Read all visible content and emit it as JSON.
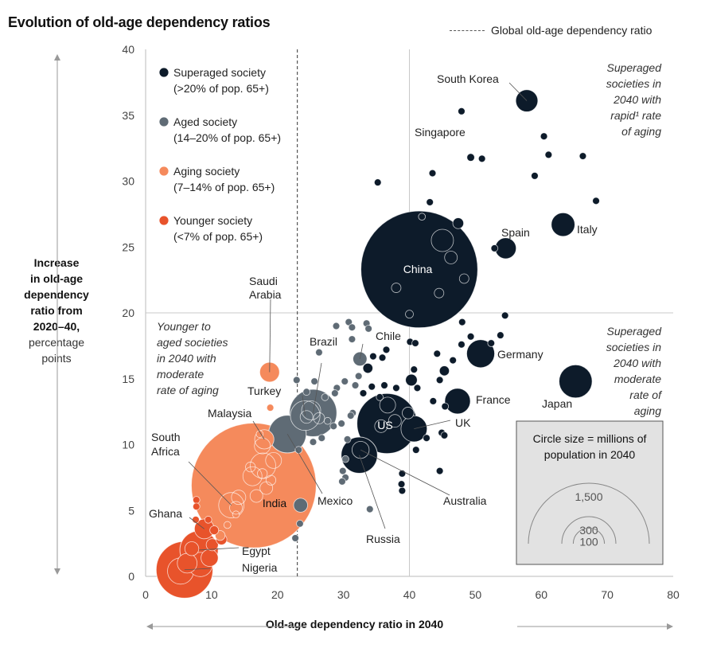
{
  "title": "Evolution of old-age dependency ratios",
  "global_line_label": "Global old-age dependency ratio",
  "y_axis": {
    "lines": [
      "Increase",
      "in old-age",
      "dependency",
      "ratio from",
      "2020–40,"
    ],
    "unit_lines": [
      "percentage",
      "points"
    ]
  },
  "x_axis_label": "Old-age dependency ratio in 2040",
  "colors": {
    "superaged": "#0d1b2a",
    "aged": "#5f6b75",
    "aging": "#f58a5c",
    "younger": "#e8532b",
    "grid": "#c8c8c8",
    "box_bg": "#e2e2e2"
  },
  "legend": [
    {
      "key": "superaged",
      "label": "Superaged society",
      "sub": "(>20% of pop. 65+)"
    },
    {
      "key": "aged",
      "label": "Aged society",
      "sub": "(14–20% of pop. 65+)"
    },
    {
      "key": "aging",
      "label": "Aging society",
      "sub": "(7–14% of pop. 65+)"
    },
    {
      "key": "younger",
      "label": "Younger society",
      "sub": "(<7% of pop. 65+)"
    }
  ],
  "quadrant_notes": [
    {
      "id": "top-right",
      "lines": [
        "Superaged",
        "societies in",
        "2040 with",
        "rapid¹ rate",
        "of aging"
      ]
    },
    {
      "id": "bottom-right",
      "lines": [
        "Superaged",
        "societies in",
        "2040 with",
        "moderate",
        "rate of",
        "aging"
      ]
    },
    {
      "id": "left",
      "lines": [
        "Younger to",
        "aged societies",
        "in 2040 with",
        "moderate",
        "rate of aging"
      ]
    }
  ],
  "size_key": {
    "title_lines": [
      "Circle size = millions of",
      "population in 2040"
    ],
    "values": [
      "1,500",
      "300",
      "100"
    ]
  },
  "chart_data": {
    "type": "scatter",
    "title": "Evolution of old-age dependency ratios",
    "xlabel": "Old-age dependency ratio in 2040",
    "ylabel": "Increase in old-age dependency ratio from 2020–40, percentage points",
    "xlim": [
      0,
      80
    ],
    "ylim": [
      0,
      40
    ],
    "xticks": [
      0,
      10,
      20,
      30,
      40,
      50,
      60,
      70,
      80
    ],
    "yticks": [
      0,
      5,
      10,
      15,
      20,
      25,
      30,
      35,
      40
    ],
    "grid": false,
    "global_ratio_x": 23,
    "divider_x": 40,
    "divider_y": 20,
    "named_points": [
      {
        "label": "China",
        "x": 41.5,
        "y": 23.3,
        "pop": 1400,
        "cat": "superaged"
      },
      {
        "label": "South Korea",
        "x": 57.8,
        "y": 36.1,
        "pop": 50,
        "cat": "superaged"
      },
      {
        "label": "Singapore",
        "x": 49.3,
        "y": 31.8,
        "pop": 6,
        "cat": "superaged"
      },
      {
        "label": "Spain",
        "x": 54.6,
        "y": 24.9,
        "pop": 45,
        "cat": "superaged"
      },
      {
        "label": "Italy",
        "x": 63.3,
        "y": 26.7,
        "pop": 57,
        "cat": "superaged"
      },
      {
        "label": "Germany",
        "x": 50.8,
        "y": 16.9,
        "pop": 80,
        "cat": "superaged"
      },
      {
        "label": "Japan",
        "x": 65.2,
        "y": 14.8,
        "pop": 113,
        "cat": "superaged"
      },
      {
        "label": "France",
        "x": 47.3,
        "y": 13.3,
        "pop": 67,
        "cat": "superaged"
      },
      {
        "label": "UK",
        "x": 40.7,
        "y": 11.2,
        "pop": 70,
        "cat": "superaged"
      },
      {
        "label": "US",
        "x": 36.6,
        "y": 11.6,
        "pop": 370,
        "cat": "superaged"
      },
      {
        "label": "Australia",
        "x": 32.6,
        "y": 9.6,
        "pop": 30,
        "cat": "superaged"
      },
      {
        "label": "Russia",
        "x": 32.4,
        "y": 9.2,
        "pop": 135,
        "cat": "superaged"
      },
      {
        "label": "Chile",
        "x": 32.5,
        "y": 16.5,
        "pop": 20,
        "cat": "aged"
      },
      {
        "label": "Brazil",
        "x": 25.4,
        "y": 12.4,
        "pop": 230,
        "cat": "aged"
      },
      {
        "label": "Mexico",
        "x": 21.5,
        "y": 10.8,
        "pop": 145,
        "cat": "aged"
      },
      {
        "label": "Turkey",
        "x": 24.2,
        "y": 12.2,
        "pop": 90,
        "cat": "aged"
      },
      {
        "label": "Saudi Arabia",
        "x": 18.8,
        "y": 15.5,
        "pop": 40,
        "cat": "aging"
      },
      {
        "label": "Malaysia",
        "x": 18.0,
        "y": 10.4,
        "pop": 38,
        "cat": "aging"
      },
      {
        "label": "India",
        "x": 16.4,
        "y": 6.9,
        "pop": 1600,
        "cat": "aging"
      },
      {
        "label": "South Africa",
        "x": 13.0,
        "y": 5.4,
        "pop": 66,
        "cat": "aging"
      },
      {
        "label": "Ghana",
        "x": 8.9,
        "y": 3.6,
        "pop": 40,
        "cat": "younger"
      },
      {
        "label": "Egypt",
        "x": 8.1,
        "y": 2.0,
        "pop": 150,
        "cat": "younger"
      },
      {
        "label": "Nigeria",
        "x": 5.9,
        "y": 0.5,
        "pop": 330,
        "cat": "younger"
      }
    ],
    "other_points": [
      {
        "x": 47.9,
        "y": 35.3,
        "pop": 5,
        "cat": "superaged"
      },
      {
        "x": 60.4,
        "y": 33.4,
        "pop": 5,
        "cat": "superaged"
      },
      {
        "x": 61.1,
        "y": 32.0,
        "pop": 5,
        "cat": "superaged"
      },
      {
        "x": 66.3,
        "y": 31.9,
        "pop": 5,
        "cat": "superaged"
      },
      {
        "x": 51.0,
        "y": 31.7,
        "pop": 5,
        "cat": "superaged"
      },
      {
        "x": 43.5,
        "y": 30.6,
        "pop": 5,
        "cat": "superaged"
      },
      {
        "x": 35.2,
        "y": 29.9,
        "pop": 5,
        "cat": "superaged"
      },
      {
        "x": 59.0,
        "y": 30.4,
        "pop": 5,
        "cat": "superaged"
      },
      {
        "x": 68.3,
        "y": 28.5,
        "pop": 5,
        "cat": "superaged"
      },
      {
        "x": 43.1,
        "y": 28.4,
        "pop": 5,
        "cat": "superaged"
      },
      {
        "x": 41.9,
        "y": 27.3,
        "pop": 5,
        "cat": "superaged"
      },
      {
        "x": 47.4,
        "y": 26.8,
        "pop": 12,
        "cat": "superaged"
      },
      {
        "x": 52.9,
        "y": 24.9,
        "pop": 5,
        "cat": "superaged"
      },
      {
        "x": 48.0,
        "y": 19.3,
        "pop": 5,
        "cat": "superaged"
      },
      {
        "x": 54.5,
        "y": 19.8,
        "pop": 5,
        "cat": "superaged"
      },
      {
        "x": 53.8,
        "y": 18.3,
        "pop": 5,
        "cat": "superaged"
      },
      {
        "x": 49.3,
        "y": 18.2,
        "pop": 5,
        "cat": "superaged"
      },
      {
        "x": 47.9,
        "y": 17.6,
        "pop": 5,
        "cat": "superaged"
      },
      {
        "x": 52.4,
        "y": 17.7,
        "pop": 5,
        "cat": "superaged"
      },
      {
        "x": 40.1,
        "y": 17.8,
        "pop": 5,
        "cat": "superaged"
      },
      {
        "x": 40.9,
        "y": 17.7,
        "pop": 5,
        "cat": "superaged"
      },
      {
        "x": 36.5,
        "y": 17.2,
        "pop": 5,
        "cat": "superaged"
      },
      {
        "x": 44.2,
        "y": 16.9,
        "pop": 5,
        "cat": "superaged"
      },
      {
        "x": 34.5,
        "y": 16.7,
        "pop": 5,
        "cat": "superaged"
      },
      {
        "x": 35.9,
        "y": 16.6,
        "pop": 5,
        "cat": "superaged"
      },
      {
        "x": 46.6,
        "y": 16.4,
        "pop": 5,
        "cat": "superaged"
      },
      {
        "x": 33.7,
        "y": 15.8,
        "pop": 10,
        "cat": "superaged"
      },
      {
        "x": 40.7,
        "y": 15.7,
        "pop": 5,
        "cat": "superaged"
      },
      {
        "x": 45.3,
        "y": 15.6,
        "pop": 10,
        "cat": "superaged"
      },
      {
        "x": 44.6,
        "y": 14.9,
        "pop": 5,
        "cat": "superaged"
      },
      {
        "x": 40.3,
        "y": 14.9,
        "pop": 14,
        "cat": "superaged"
      },
      {
        "x": 36.2,
        "y": 14.5,
        "pop": 5,
        "cat": "superaged"
      },
      {
        "x": 38.0,
        "y": 14.3,
        "pop": 5,
        "cat": "superaged"
      },
      {
        "x": 34.3,
        "y": 14.4,
        "pop": 5,
        "cat": "superaged"
      },
      {
        "x": 41.2,
        "y": 14.3,
        "pop": 5,
        "cat": "superaged"
      },
      {
        "x": 33.0,
        "y": 13.9,
        "pop": 5,
        "cat": "superaged"
      },
      {
        "x": 35.5,
        "y": 13.6,
        "pop": 5,
        "cat": "superaged"
      },
      {
        "x": 43.6,
        "y": 13.3,
        "pop": 5,
        "cat": "superaged"
      },
      {
        "x": 39.8,
        "y": 12.4,
        "pop": 14,
        "cat": "superaged"
      },
      {
        "x": 45.4,
        "y": 12.9,
        "pop": 5,
        "cat": "superaged"
      },
      {
        "x": 44.9,
        "y": 10.9,
        "pop": 5,
        "cat": "superaged"
      },
      {
        "x": 45.3,
        "y": 10.7,
        "pop": 5,
        "cat": "superaged"
      },
      {
        "x": 42.6,
        "y": 10.5,
        "pop": 5,
        "cat": "superaged"
      },
      {
        "x": 41.0,
        "y": 9.6,
        "pop": 5,
        "cat": "superaged"
      },
      {
        "x": 38.9,
        "y": 7.8,
        "pop": 5,
        "cat": "superaged"
      },
      {
        "x": 44.6,
        "y": 8.0,
        "pop": 5,
        "cat": "superaged"
      },
      {
        "x": 38.9,
        "y": 6.5,
        "pop": 5,
        "cat": "superaged"
      },
      {
        "x": 38.8,
        "y": 7.0,
        "pop": 5,
        "cat": "superaged"
      },
      {
        "x": 28.9,
        "y": 19.0,
        "pop": 5,
        "cat": "aged"
      },
      {
        "x": 30.8,
        "y": 19.3,
        "pop": 5,
        "cat": "aged"
      },
      {
        "x": 31.3,
        "y": 18.9,
        "pop": 5,
        "cat": "aged"
      },
      {
        "x": 33.5,
        "y": 19.2,
        "pop": 5,
        "cat": "aged"
      },
      {
        "x": 33.8,
        "y": 18.8,
        "pop": 5,
        "cat": "aged"
      },
      {
        "x": 31.3,
        "y": 18.0,
        "pop": 5,
        "cat": "aged"
      },
      {
        "x": 26.3,
        "y": 17.0,
        "pop": 5,
        "cat": "aged"
      },
      {
        "x": 32.3,
        "y": 15.2,
        "pop": 5,
        "cat": "aged"
      },
      {
        "x": 31.8,
        "y": 14.5,
        "pop": 5,
        "cat": "aged"
      },
      {
        "x": 30.2,
        "y": 14.8,
        "pop": 5,
        "cat": "aged"
      },
      {
        "x": 29.0,
        "y": 14.3,
        "pop": 5,
        "cat": "aged"
      },
      {
        "x": 25.6,
        "y": 14.8,
        "pop": 5,
        "cat": "aged"
      },
      {
        "x": 22.9,
        "y": 14.9,
        "pop": 5,
        "cat": "aged"
      },
      {
        "x": 24.4,
        "y": 14.0,
        "pop": 5,
        "cat": "aged"
      },
      {
        "x": 28.7,
        "y": 13.9,
        "pop": 5,
        "cat": "aged"
      },
      {
        "x": 27.2,
        "y": 13.6,
        "pop": 5,
        "cat": "aged"
      },
      {
        "x": 31.4,
        "y": 12.4,
        "pop": 5,
        "cat": "aged"
      },
      {
        "x": 31.1,
        "y": 12.2,
        "pop": 5,
        "cat": "aged"
      },
      {
        "x": 29.7,
        "y": 11.6,
        "pop": 5,
        "cat": "aged"
      },
      {
        "x": 28.5,
        "y": 11.4,
        "pop": 5,
        "cat": "aged"
      },
      {
        "x": 27.6,
        "y": 11.8,
        "pop": 5,
        "cat": "aged"
      },
      {
        "x": 30.6,
        "y": 10.4,
        "pop": 5,
        "cat": "aged"
      },
      {
        "x": 26.7,
        "y": 10.5,
        "pop": 5,
        "cat": "aged"
      },
      {
        "x": 25.4,
        "y": 10.2,
        "pop": 5,
        "cat": "aged"
      },
      {
        "x": 23.2,
        "y": 9.6,
        "pop": 5,
        "cat": "aged"
      },
      {
        "x": 30.3,
        "y": 8.9,
        "pop": 5,
        "cat": "aged"
      },
      {
        "x": 29.9,
        "y": 8.0,
        "pop": 5,
        "cat": "aged"
      },
      {
        "x": 30.3,
        "y": 7.5,
        "pop": 5,
        "cat": "aged"
      },
      {
        "x": 29.8,
        "y": 7.2,
        "pop": 5,
        "cat": "aged"
      },
      {
        "x": 34.0,
        "y": 5.1,
        "pop": 5,
        "cat": "aged"
      },
      {
        "x": 23.4,
        "y": 4.0,
        "pop": 5,
        "cat": "aged"
      },
      {
        "x": 22.7,
        "y": 2.9,
        "pop": 5,
        "cat": "aged"
      },
      {
        "x": 23.5,
        "y": 5.4,
        "pop": 20,
        "cat": "aged"
      },
      {
        "x": 18.9,
        "y": 12.8,
        "pop": 5,
        "cat": "aging"
      },
      {
        "x": 17.3,
        "y": 10.8,
        "pop": 5,
        "cat": "aging"
      },
      {
        "x": 15.9,
        "y": 8.3,
        "pop": 10,
        "cat": "aging"
      },
      {
        "x": 17.7,
        "y": 7.8,
        "pop": 10,
        "cat": "aging"
      },
      {
        "x": 19.0,
        "y": 7.3,
        "pop": 10,
        "cat": "aging"
      },
      {
        "x": 13.7,
        "y": 4.7,
        "pop": 5,
        "cat": "aging"
      },
      {
        "x": 12.4,
        "y": 3.9,
        "pop": 5,
        "cat": "aging"
      },
      {
        "x": 11.3,
        "y": 3.1,
        "pop": 10,
        "cat": "aging"
      },
      {
        "x": 7.7,
        "y": 5.8,
        "pop": 5,
        "cat": "younger"
      },
      {
        "x": 7.7,
        "y": 5.3,
        "pop": 5,
        "cat": "younger"
      },
      {
        "x": 7.6,
        "y": 4.3,
        "pop": 5,
        "cat": "younger"
      },
      {
        "x": 9.5,
        "y": 4.3,
        "pop": 5,
        "cat": "younger"
      },
      {
        "x": 10.4,
        "y": 3.5,
        "pop": 8,
        "cat": "younger"
      },
      {
        "x": 11.5,
        "y": 2.8,
        "pop": 12,
        "cat": "younger"
      },
      {
        "x": 10.1,
        "y": 2.4,
        "pop": 15,
        "cat": "younger"
      },
      {
        "x": 7.0,
        "y": 2.1,
        "pop": 20,
        "cat": "younger"
      },
      {
        "x": 9.7,
        "y": 1.4,
        "pop": 30,
        "cat": "younger"
      },
      {
        "x": 6.3,
        "y": 1.0,
        "pop": 40,
        "cat": "younger"
      },
      {
        "x": 8.3,
        "y": 0.9,
        "pop": 60,
        "cat": "younger"
      },
      {
        "x": 5.3,
        "y": 0.4,
        "pop": 70,
        "cat": "younger"
      }
    ]
  }
}
